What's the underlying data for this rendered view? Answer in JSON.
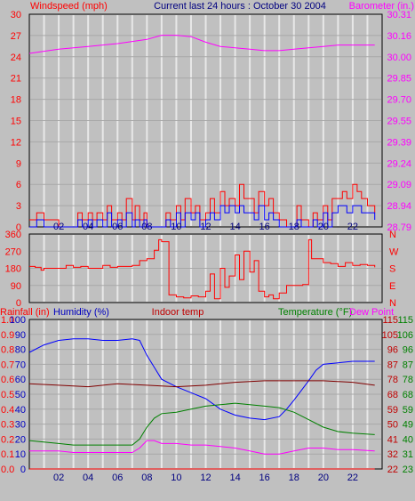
{
  "header": {
    "left_label": "Windspeed (mph)",
    "center_label": "Current last 24 hours : October 30 2004",
    "right_label": "Barometer (in.)"
  },
  "colors": {
    "background": "#c0c0c0",
    "plot_background": "#c0c0c0",
    "frame": "#000000",
    "grid": "#e8e8e8",
    "red": "#ff0000",
    "blue": "#0000ff",
    "magenta": "#ff00ff",
    "navy": "#000080",
    "maroon": "#800000",
    "green": "#008000",
    "darkred": "#800020",
    "label_red": "#ff0000",
    "label_blue": "#0000c0",
    "label_magenta": "#ff00ff",
    "label_maroon": "#c00000",
    "label_green": "#008000",
    "label_darkblue": "#000080"
  },
  "chart_data": [
    {
      "type": "line",
      "id": "wind-baro",
      "x_ticks": [
        "02",
        "04",
        "06",
        "08",
        "10",
        "12",
        "14",
        "16",
        "18",
        "20",
        "22"
      ],
      "xlim": [
        0,
        24
      ],
      "left_axis": {
        "label": "Windspeed (mph)",
        "ylim": [
          0,
          30
        ],
        "ticks": [
          "0",
          "3",
          "6",
          "9",
          "12",
          "15",
          "18",
          "21",
          "24",
          "27",
          "30"
        ]
      },
      "right_axis": {
        "label": "Barometer (in.)",
        "ylim": [
          28.79,
          30.31
        ],
        "ticks": [
          "28.79",
          "28.94",
          "29.09",
          "29.24",
          "29.39",
          "29.55",
          "29.70",
          "29.85",
          "30.00",
          "30.16",
          "30.31"
        ]
      },
      "series": [
        {
          "axis": "right",
          "color": "magenta",
          "x": [
            0,
            2,
            4,
            6,
            8,
            9,
            10,
            11,
            12,
            13,
            14,
            15,
            16,
            17,
            18,
            19,
            20,
            21,
            22,
            23.5
          ],
          "y": [
            30.03,
            30.06,
            30.08,
            30.1,
            30.13,
            30.16,
            30.16,
            30.15,
            30.11,
            30.08,
            30.07,
            30.06,
            30.05,
            30.05,
            30.06,
            30.07,
            30.08,
            30.09,
            30.09,
            30.09
          ]
        },
        {
          "axis": "left",
          "color": "red",
          "style": "steps",
          "x": [
            0,
            0.5,
            1,
            2,
            3,
            3.3,
            3.6,
            4,
            4.3,
            4.6,
            5,
            5.3,
            5.6,
            6,
            6.3,
            6.6,
            7,
            7.2,
            7.5,
            7.8,
            8,
            9,
            9.3,
            9.6,
            10,
            10.3,
            10.6,
            11,
            11.3,
            11.6,
            12,
            12.3,
            12.6,
            13,
            13.3,
            13.6,
            14,
            14.3,
            14.6,
            15,
            15.3,
            15.6,
            16,
            16.3,
            16.6,
            17,
            17.5,
            18,
            18.2,
            18.5,
            19,
            19.3,
            19.6,
            20,
            20.3,
            20.6,
            21,
            21.3,
            21.6,
            22,
            22.3,
            22.6,
            23,
            23.5
          ],
          "y": [
            1,
            2,
            1,
            0,
            0,
            2,
            1,
            2,
            1,
            2,
            1,
            3,
            1,
            2,
            1,
            4,
            1,
            3,
            1,
            2,
            0,
            0,
            2,
            1,
            3,
            1,
            4,
            2,
            3,
            1,
            2,
            4,
            2,
            5,
            3,
            4,
            3,
            6,
            4,
            4,
            2,
            5,
            3,
            4,
            2,
            1,
            0,
            0,
            3,
            1,
            0,
            2,
            1,
            3,
            1,
            4,
            4,
            5,
            4,
            6,
            5,
            4,
            3,
            2
          ]
        },
        {
          "axis": "left",
          "color": "blue",
          "style": "steps",
          "x": [
            0,
            0.5,
            1,
            2,
            3,
            3.3,
            3.6,
            4,
            4.3,
            4.6,
            5,
            5.3,
            5.6,
            6,
            6.3,
            6.6,
            7,
            7.2,
            7.5,
            7.8,
            8,
            9,
            9.3,
            9.6,
            10,
            10.3,
            10.6,
            11,
            11.3,
            11.6,
            12,
            12.3,
            12.6,
            13,
            13.3,
            13.6,
            14,
            14.3,
            14.6,
            15,
            15.3,
            15.6,
            16,
            16.3,
            16.6,
            17,
            17.5,
            18,
            18.2,
            18.5,
            19,
            19.3,
            19.6,
            20,
            20.3,
            20.6,
            21,
            21.3,
            21.6,
            22,
            22.3,
            22.6,
            23,
            23.5
          ],
          "y": [
            0,
            1,
            0,
            0,
            0,
            1,
            0,
            1,
            0,
            1,
            0,
            2,
            0,
            1,
            0,
            2,
            0,
            1,
            0,
            1,
            0,
            0,
            1,
            0,
            2,
            0,
            2,
            1,
            2,
            0,
            1,
            2,
            1,
            3,
            2,
            3,
            2,
            3,
            2,
            2,
            1,
            3,
            1,
            2,
            1,
            0,
            0,
            0,
            1,
            0,
            0,
            1,
            0,
            2,
            0,
            2,
            3,
            3,
            2,
            3,
            3,
            2,
            2,
            1
          ]
        }
      ]
    },
    {
      "type": "line",
      "id": "wind-direction",
      "x_ticks": [],
      "xlim": [
        0,
        24
      ],
      "left_axis": {
        "ylim": [
          0,
          360
        ],
        "ticks": [
          "0",
          "90",
          "180",
          "270",
          "360"
        ]
      },
      "right_axis": {
        "ticks": [
          "N",
          "E",
          "S",
          "W",
          "N"
        ]
      },
      "series": [
        {
          "color": "red",
          "x": [
            0,
            0.4,
            0.8,
            1,
            2,
            2.5,
            3,
            3.5,
            4,
            5,
            5.5,
            6,
            7,
            7.5,
            8,
            8.5,
            8.8,
            9,
            9.5,
            10,
            10.5,
            11,
            11.5,
            12,
            12.3,
            12.6,
            13,
            13.3,
            13.6,
            14,
            14.3,
            14.6,
            15,
            15.3,
            15.6,
            16,
            16.3,
            16.6,
            17,
            17.5,
            18,
            18.6,
            19,
            19.2,
            19.5,
            20,
            20.5,
            21,
            21.5,
            22,
            22.5,
            23,
            23.5
          ],
          "y": [
            190,
            185,
            170,
            180,
            180,
            195,
            185,
            190,
            180,
            195,
            185,
            190,
            195,
            220,
            230,
            275,
            330,
            320,
            40,
            30,
            25,
            35,
            30,
            60,
            150,
            20,
            180,
            80,
            140,
            250,
            120,
            270,
            160,
            220,
            60,
            30,
            40,
            20,
            50,
            90,
            90,
            95,
            330,
            230,
            230,
            210,
            205,
            190,
            210,
            195,
            200,
            195,
            185
          ]
        }
      ]
    },
    {
      "type": "line",
      "id": "temp-humidity",
      "x_ticks": [
        "02",
        "04",
        "06",
        "08",
        "10",
        "12",
        "14",
        "16",
        "18",
        "20",
        "22"
      ],
      "xlim": [
        0,
        24
      ],
      "labels": {
        "rainfall": "Rainfall (in)",
        "humidity": "Humidity (%)",
        "indoor": "Indoor temp",
        "temperature": "Temperature (°F)",
        "dewpoint": "Dew Point"
      },
      "axes": {
        "rainfall": [
          "0.0",
          "0.1",
          "0.2",
          "0.3",
          "0.4",
          "0.5",
          "0.6",
          "0.7",
          "0.8",
          "0.9",
          "1.0"
        ],
        "humidity": [
          "0",
          "10",
          "20",
          "30",
          "40",
          "50",
          "60",
          "70",
          "80",
          "90",
          "100"
        ],
        "temp_a": [
          "22",
          "32",
          "41",
          "50",
          "59",
          "68",
          "78",
          "87",
          "96",
          "105",
          "115"
        ],
        "temp_b": [
          "23",
          "31",
          "40",
          "49",
          "59",
          "68",
          "78",
          "87",
          "96",
          "106",
          "115"
        ]
      },
      "ylim": [
        0,
        100
      ],
      "series": [
        {
          "name": "Humidity (%)",
          "color": "blue",
          "x": [
            0,
            1,
            2,
            3,
            4,
            5,
            6,
            7,
            7.5,
            8,
            8.5,
            9,
            10,
            11,
            12,
            13,
            14,
            15,
            16,
            17,
            17.5,
            18,
            19,
            19.5,
            20,
            21,
            22,
            23.5
          ],
          "y": [
            78,
            83,
            86,
            87,
            87,
            86,
            86,
            87,
            86,
            76,
            68,
            60,
            55,
            51,
            47,
            40,
            36,
            34,
            33,
            35,
            40,
            46,
            59,
            66,
            70,
            71,
            72,
            72
          ]
        },
        {
          "name": "Indoor temp",
          "color": "maroon",
          "x": [
            0,
            2,
            4,
            6,
            8,
            10,
            12,
            14,
            16,
            18,
            20,
            22,
            23.5
          ],
          "y": [
            57,
            56,
            55,
            57,
            56,
            55,
            56,
            58,
            59,
            59,
            59,
            58,
            56
          ]
        },
        {
          "name": "Temperature (°F)",
          "color": "green",
          "x": [
            0,
            1,
            2,
            3,
            4,
            5,
            6,
            7,
            7.5,
            8,
            8.5,
            9,
            10,
            11,
            12,
            13,
            14,
            15,
            16,
            17,
            18,
            19,
            20,
            21,
            22,
            23.5
          ],
          "y": [
            19,
            18,
            17,
            16,
            16,
            16,
            16,
            16,
            20,
            28,
            34,
            37,
            38,
            40,
            42,
            43,
            44,
            43,
            42,
            41,
            38,
            33,
            28,
            25,
            24,
            23
          ]
        },
        {
          "name": "Dew Point",
          "color": "magenta",
          "x": [
            0,
            1,
            2,
            3,
            4,
            5,
            6,
            7,
            7.5,
            8,
            8.5,
            9,
            10,
            11,
            12,
            13,
            14,
            15,
            16,
            17,
            18,
            19,
            20,
            21,
            22,
            23.5
          ],
          "y": [
            12,
            12,
            12,
            11,
            11,
            11,
            11,
            11,
            14,
            19,
            19,
            17,
            17,
            16,
            16,
            15,
            14,
            12,
            10,
            10,
            12,
            14,
            14,
            13,
            13,
            12
          ]
        },
        {
          "name": "Rainfall (in)",
          "color": "red",
          "x": [
            0,
            23.5
          ],
          "y": [
            0,
            0
          ]
        }
      ]
    }
  ]
}
